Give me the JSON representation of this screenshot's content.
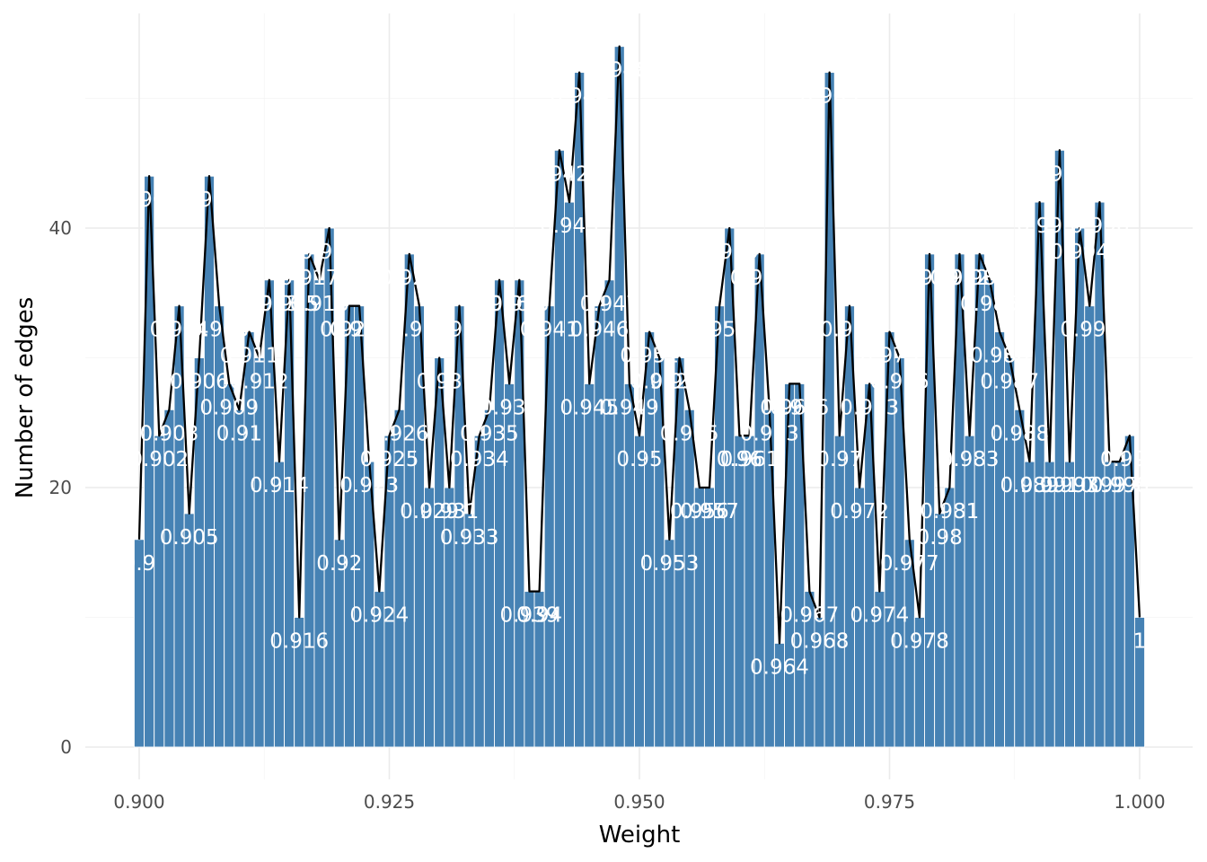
{
  "chart_data": {
    "type": "bar",
    "title": "",
    "xlabel": "Weight",
    "ylabel": "Number of edges",
    "xlim": [
      0.8995,
      1.0005
    ],
    "ylim": [
      0,
      54
    ],
    "x_ticks": [
      {
        "value": 0.9,
        "label": "0.900"
      },
      {
        "value": 0.925,
        "label": "0.925"
      },
      {
        "value": 0.95,
        "label": "0.950"
      },
      {
        "value": 0.975,
        "label": "0.975"
      },
      {
        "value": 1.0,
        "label": "1.000"
      }
    ],
    "y_ticks": [
      {
        "value": 0,
        "label": "0"
      },
      {
        "value": 20,
        "label": "20"
      },
      {
        "value": 40,
        "label": "40"
      }
    ],
    "grid": true,
    "bar_color": "#4682b4",
    "line_color": "#000000",
    "label_color": "#ffffff",
    "x": [
      0.9,
      0.901,
      0.902,
      0.903,
      0.904,
      0.905,
      0.906,
      0.907,
      0.908,
      0.909,
      0.91,
      0.911,
      0.912,
      0.913,
      0.914,
      0.915,
      0.916,
      0.917,
      0.918,
      0.919,
      0.92,
      0.921,
      0.922,
      0.923,
      0.924,
      0.925,
      0.926,
      0.927,
      0.928,
      0.929,
      0.93,
      0.931,
      0.932,
      0.933,
      0.934,
      0.935,
      0.936,
      0.937,
      0.938,
      0.939,
      0.94,
      0.941,
      0.942,
      0.943,
      0.944,
      0.945,
      0.946,
      0.947,
      0.948,
      0.949,
      0.95,
      0.951,
      0.952,
      0.953,
      0.954,
      0.955,
      0.956,
      0.957,
      0.958,
      0.959,
      0.96,
      0.961,
      0.962,
      0.963,
      0.964,
      0.965,
      0.966,
      0.967,
      0.968,
      0.969,
      0.97,
      0.971,
      0.972,
      0.973,
      0.974,
      0.975,
      0.976,
      0.977,
      0.978,
      0.979,
      0.98,
      0.981,
      0.982,
      0.983,
      0.984,
      0.985,
      0.986,
      0.987,
      0.988,
      0.989,
      0.99,
      0.991,
      0.992,
      0.993,
      0.994,
      0.995,
      0.996,
      0.997,
      0.998,
      0.999,
      1.0
    ],
    "values": [
      16,
      44,
      24,
      26,
      34,
      18,
      30,
      44,
      34,
      28,
      26,
      32,
      30,
      36,
      22,
      36,
      10,
      38,
      36,
      40,
      16,
      34,
      34,
      22,
      12,
      24,
      26,
      38,
      34,
      20,
      30,
      20,
      34,
      18,
      24,
      26,
      36,
      28,
      36,
      12,
      12,
      34,
      46,
      42,
      52,
      28,
      34,
      36,
      54,
      28,
      24,
      32,
      30,
      16,
      30,
      26,
      20,
      20,
      34,
      40,
      24,
      24,
      38,
      26,
      8,
      28,
      28,
      12,
      10,
      52,
      24,
      34,
      20,
      28,
      12,
      32,
      30,
      16,
      10,
      38,
      18,
      20,
      38,
      24,
      38,
      36,
      32,
      30,
      26,
      22,
      42,
      22,
      46,
      22,
      40,
      34,
      42,
      22,
      22,
      24,
      10
    ],
    "labels": [
      "0.9",
      "0.901",
      "0.902",
      "0.903",
      "0.904",
      "0.905",
      "0.906",
      "0.907",
      "0.908",
      "0.909",
      "0.91",
      "0.911",
      "0.912",
      "0.913",
      "0.914",
      "0.915",
      "0.916",
      "0.917",
      "0.918",
      "0.919",
      "0.92",
      "0.921",
      "0.922",
      "0.923",
      "0.924",
      "0.925",
      "0.926",
      "0.927",
      "0.928",
      "0.929",
      "0.93",
      "0.931",
      "0.932",
      "0.933",
      "0.934",
      "0.935",
      "0.936",
      "0.937",
      "0.938",
      "0.939",
      "0.94",
      "0.941",
      "0.942",
      "0.943",
      "0.944",
      "0.945",
      "0.946",
      "0.947",
      "0.948",
      "0.949",
      "0.95",
      "0.951",
      "0.952",
      "0.953",
      "0.954",
      "0.955",
      "0.956",
      "0.957",
      "0.958",
      "0.959",
      "0.96",
      "0.961",
      "0.962",
      "0.963",
      "0.964",
      "0.965",
      "0.966",
      "0.967",
      "0.968",
      "0.969",
      "0.97",
      "0.971",
      "0.972",
      "0.973",
      "0.974",
      "0.975",
      "0.976",
      "0.977",
      "0.978",
      "0.979",
      "0.98",
      "0.981",
      "0.982",
      "0.983",
      "0.984",
      "0.985",
      "0.986",
      "0.987",
      "0.988",
      "0.989",
      "0.99",
      "0.991",
      "0.992",
      "0.993",
      "0.994",
      "0.995",
      "0.996",
      "0.997",
      "0.998",
      "0.999",
      "1"
    ]
  }
}
